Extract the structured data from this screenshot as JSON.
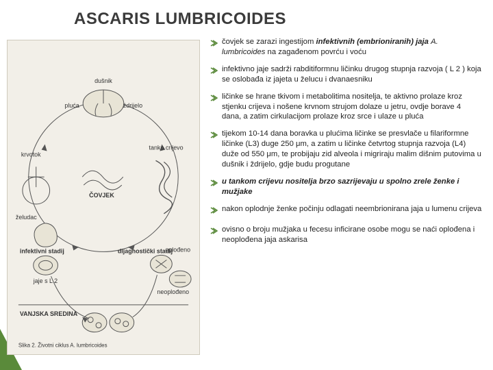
{
  "title": "ASCARIS LUMBRICOIDES",
  "accent_color": "#5a8a3a",
  "diagram": {
    "labels": {
      "dusnik": "dušnik",
      "pluca": "pluća",
      "zdrijelo": "ždrijelo",
      "krvotok": "krvotok",
      "tanko_crijevo": "tanko crijevo",
      "covjek": "ČOVJEK",
      "zeludac": "želudac",
      "infektivni": "infektivni stadij",
      "dijagnosticki": "dijagnostički stadij",
      "jaje_l2": "jaje s L 2",
      "oplodeno": "oplođeno",
      "neoplodeno": "neoplođeno",
      "vanjska": "VANJSKA SREDINA",
      "caption": "Slika 2. Životni ciklus A. lumbricoides"
    },
    "colors": {
      "bg": "#f2efe8",
      "stroke": "#444444",
      "node_fill": "#e8e4d6"
    }
  },
  "bullets": [
    {
      "segments": [
        {
          "t": "čovjek se zarazi ingestijom ",
          "cls": ""
        },
        {
          "t": "infektivnih (embrioniranih) jaja",
          "cls": "boldital"
        },
        {
          "t": " ",
          "cls": ""
        },
        {
          "t": "A. lumbricoides",
          "cls": "ital"
        },
        {
          "t": " na zagađenom povrću i voću",
          "cls": ""
        }
      ]
    },
    {
      "segments": [
        {
          "t": "infektivno jaje sadrži rabditiformnu ličinku drugog stupnja razvoja ( L 2 ) koja se oslobađa iz jajeta u želucu i dvanaesniku",
          "cls": ""
        }
      ]
    },
    {
      "segments": [
        {
          "t": "ličinke se hrane tkivom i metabolitima nositelja, te aktivno prolaze kroz stjenku crijeva i nošene krvnom strujom dolaze u jetru, ovdje borave 4 dana, a zatim cirkulacijom prolaze kroz srce i ulaze u pluća",
          "cls": ""
        }
      ]
    },
    {
      "segments": [
        {
          "t": "tijekom 10-14 dana boravka u plućima ličinke se presvlače u filariformne ličinke (L3) duge 250 μm, a zatim u ličinke četvrtog stupnja razvoja (L4) duže od 550 μm, te probijaju zid alveola i migriraju malim dišnim putovima u dušnik i ždrijelo, gdje budu progutane",
          "cls": ""
        }
      ]
    },
    {
      "segments": [
        {
          "t": "u tankom crijevu nositelja brzo sazrijevaju u spolno zrele ženke i mužjake",
          "cls": "boldital"
        }
      ]
    },
    {
      "segments": [
        {
          "t": "nakon oplodnje ženke počinju odlagati neembrionirana jaja u lumenu crijeva",
          "cls": ""
        }
      ]
    },
    {
      "segments": [
        {
          "t": "ovisno o broju mužjaka u fecesu inficirane osobe mogu se naći oplođena i neoplođena jaja askarisa",
          "cls": ""
        }
      ]
    }
  ],
  "bullet_icon_color": "#5a8a3a"
}
